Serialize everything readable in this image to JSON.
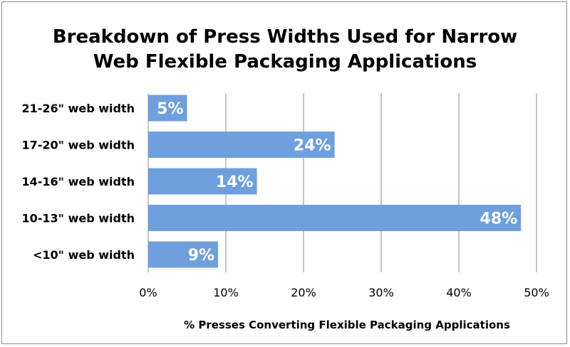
{
  "chart_data": {
    "type": "bar",
    "orientation": "horizontal",
    "title": "Breakdown of Press Widths Used for Narrow Web Flexible Packaging Applications",
    "title_lines": [
      "Breakdown of Press Widths Used for Narrow",
      "Web Flexible Packaging Applications"
    ],
    "categories": [
      "21-26\" web width",
      "17-20\" web width",
      "14-16\" web width",
      "10-13\" web width",
      "<10\" web width"
    ],
    "values": [
      5,
      24,
      14,
      48,
      9
    ],
    "data_labels": [
      "5%",
      "24%",
      "14%",
      "48%",
      "9%"
    ],
    "xlabel": "% Presses Converting Flexible Packaging Applications",
    "ylabel": "",
    "xlim": [
      0,
      50
    ],
    "x_ticks": [
      0,
      10,
      20,
      30,
      40,
      50
    ],
    "x_tick_labels": [
      "0%",
      "10%",
      "20%",
      "30%",
      "40%",
      "50%"
    ],
    "grid": "vertical",
    "legend": "none",
    "colors": {
      "bar": "#6f9fdc",
      "grid": "#8c8c8c",
      "axis": "#8c8c8c",
      "data_label": "#ffffff"
    }
  }
}
